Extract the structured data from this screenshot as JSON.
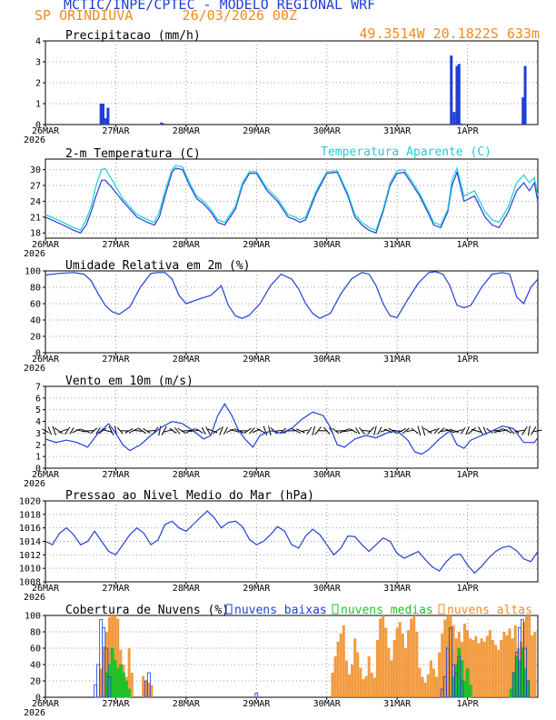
{
  "header": {
    "title": "MCTIC/INPE/CPTEC - MODELO REGIONAL WRF",
    "location": "SP ORINDIUVA      26/03/2026 00Z",
    "coords": "49.3514W 20.1822S 633m"
  },
  "colors": {
    "blue": "#1f3fd6",
    "orange": "#f08a1e",
    "green": "#22c02a",
    "cyan": "#1fcfd6",
    "black": "#000000"
  },
  "x_axis": {
    "labels": [
      "26MAR",
      "27MAR",
      "28MAR",
      "29MAR",
      "30MAR",
      "31MAR",
      "1APR"
    ],
    "year": "2026"
  },
  "chart_data": [
    {
      "id": "precip",
      "type": "bar",
      "title": "Precipitacao (mm/h)",
      "ylim": [
        0,
        4
      ],
      "yticks": [
        0,
        1,
        2,
        3,
        4
      ],
      "x_days": [
        0.79,
        0.82,
        0.86,
        0.89,
        1.65,
        1.68,
        5.77,
        5.81,
        5.85,
        5.88,
        5.91,
        6.79,
        6.82
      ],
      "values": [
        1.0,
        1.0,
        0.3,
        0.8,
        0.1,
        0.05,
        3.3,
        0.6,
        2.8,
        2.9,
        0.05,
        1.3,
        2.8
      ]
    },
    {
      "id": "temp",
      "type": "line",
      "title": "2-m Temperatura (C)",
      "title2": "Temperatura Aparente (C)",
      "ylim": [
        17,
        32
      ],
      "yticks": [
        18,
        21,
        24,
        27,
        30
      ],
      "series": [
        {
          "name": "2-m Temperatura (C)",
          "color": "blue",
          "x": [
            0,
            0.25,
            0.4,
            0.5,
            0.58,
            0.65,
            0.72,
            0.8,
            0.85,
            0.95,
            1.1,
            1.3,
            1.45,
            1.55,
            1.62,
            1.7,
            1.8,
            1.85,
            1.95,
            2.05,
            2.15,
            2.25,
            2.35,
            2.45,
            2.55,
            2.7,
            2.8,
            2.9,
            3.0,
            3.15,
            3.3,
            3.45,
            3.55,
            3.62,
            3.7,
            3.85,
            4.0,
            4.15,
            4.3,
            4.4,
            4.5,
            4.6,
            4.7,
            4.8,
            4.9,
            5.0,
            5.1,
            5.2,
            5.32,
            5.45,
            5.52,
            5.62,
            5.72,
            5.78,
            5.85,
            5.95,
            6.1,
            6.25,
            6.35,
            6.45,
            6.58,
            6.7,
            6.8,
            6.88,
            6.95,
            7.0
          ],
          "y": [
            21,
            19.5,
            18.5,
            18,
            19.5,
            22,
            25,
            28,
            28,
            26.5,
            24,
            21,
            20,
            19.5,
            21,
            25,
            29.5,
            30.3,
            30,
            27,
            24.5,
            23.5,
            22,
            20,
            19.5,
            22.5,
            27,
            29.3,
            29.3,
            26,
            24,
            21,
            20.5,
            20,
            20.5,
            25.5,
            29.3,
            29.5,
            25,
            21,
            19.5,
            18.5,
            18,
            22,
            27,
            29.3,
            29.5,
            27.5,
            25,
            21.5,
            19.5,
            19,
            22,
            27,
            29.5,
            24,
            25,
            21,
            19.5,
            19,
            22,
            26,
            27.5,
            26,
            27.5,
            24
          ]
        },
        {
          "name": "Temperatura Aparente (C)",
          "color": "cyan",
          "x": [
            0,
            0.25,
            0.4,
            0.5,
            0.58,
            0.65,
            0.72,
            0.8,
            0.85,
            0.95,
            1.1,
            1.3,
            1.45,
            1.55,
            1.62,
            1.7,
            1.8,
            1.85,
            1.95,
            2.05,
            2.15,
            2.25,
            2.35,
            2.45,
            2.55,
            2.7,
            2.8,
            2.9,
            3.0,
            3.15,
            3.3,
            3.45,
            3.55,
            3.62,
            3.7,
            3.85,
            4.0,
            4.15,
            4.3,
            4.4,
            4.5,
            4.6,
            4.7,
            4.8,
            4.9,
            5.0,
            5.1,
            5.2,
            5.32,
            5.45,
            5.52,
            5.62,
            5.72,
            5.78,
            5.85,
            5.95,
            6.1,
            6.25,
            6.35,
            6.45,
            6.58,
            6.7,
            6.8,
            6.88,
            6.95,
            7.0
          ],
          "y": [
            21.5,
            20,
            19,
            18.5,
            20.5,
            23,
            27,
            30,
            30.2,
            28,
            24.5,
            21.5,
            20.5,
            20,
            22,
            26,
            30,
            30.8,
            30.5,
            27.5,
            25,
            24,
            22.5,
            20.5,
            20,
            23,
            27.5,
            29.6,
            29.6,
            26.5,
            24.5,
            21.5,
            21,
            20.5,
            21,
            26,
            29.6,
            29.8,
            25.5,
            21.5,
            20,
            19,
            18.5,
            22.5,
            27.5,
            29.8,
            30,
            28,
            25.5,
            22,
            20,
            19.5,
            22.5,
            28,
            30.3,
            25,
            26,
            22,
            20.5,
            20,
            23,
            27.5,
            29,
            27.5,
            28.5,
            25
          ]
        }
      ]
    },
    {
      "id": "rh",
      "type": "line",
      "title": "Umidade Relativa em 2m (%)",
      "ylim": [
        0,
        100
      ],
      "yticks": [
        0,
        20,
        40,
        60,
        80,
        100
      ],
      "series": [
        {
          "name": "Umidade Relativa em 2m (%)",
          "color": "blue",
          "x": [
            0,
            0.2,
            0.4,
            0.55,
            0.65,
            0.75,
            0.85,
            0.95,
            1.05,
            1.2,
            1.35,
            1.5,
            1.6,
            1.7,
            1.8,
            1.9,
            2.0,
            2.2,
            2.35,
            2.5,
            2.6,
            2.7,
            2.8,
            2.9,
            3.05,
            3.2,
            3.35,
            3.5,
            3.6,
            3.7,
            3.8,
            3.9,
            4.05,
            4.2,
            4.35,
            4.5,
            4.6,
            4.7,
            4.8,
            4.9,
            5.0,
            5.15,
            5.3,
            5.45,
            5.55,
            5.65,
            5.75,
            5.85,
            5.95,
            6.05,
            6.2,
            6.35,
            6.5,
            6.6,
            6.7,
            6.8,
            6.9,
            7.0
          ],
          "y": [
            95,
            97,
            98,
            96,
            88,
            72,
            58,
            50,
            47,
            56,
            80,
            97,
            98,
            98,
            90,
            70,
            60,
            66,
            70,
            82,
            58,
            45,
            42,
            46,
            60,
            82,
            96,
            90,
            78,
            60,
            48,
            42,
            48,
            72,
            90,
            98,
            96,
            82,
            60,
            45,
            43,
            65,
            85,
            98,
            99,
            96,
            82,
            58,
            55,
            58,
            80,
            96,
            98,
            96,
            68,
            60,
            80,
            90
          ]
        }
      ]
    },
    {
      "id": "wind",
      "type": "line",
      "title": "Vento em 10m (m/s)",
      "ylim": [
        0,
        7
      ],
      "yticks": [
        0,
        1,
        2,
        3,
        4,
        5,
        6,
        7
      ],
      "series": [
        {
          "name": "Vento em 10m (m/s)",
          "color": "blue",
          "x": [
            0,
            0.15,
            0.3,
            0.45,
            0.6,
            0.75,
            0.9,
            1.0,
            1.1,
            1.2,
            1.35,
            1.5,
            1.65,
            1.8,
            1.95,
            2.1,
            2.25,
            2.35,
            2.45,
            2.55,
            2.65,
            2.75,
            2.85,
            2.95,
            3.05,
            3.2,
            3.35,
            3.5,
            3.65,
            3.8,
            3.95,
            4.05,
            4.15,
            4.25,
            4.4,
            4.55,
            4.7,
            4.85,
            5.0,
            5.15,
            5.25,
            5.35,
            5.45,
            5.6,
            5.75,
            5.85,
            5.95,
            6.05,
            6.2,
            6.35,
            6.5,
            6.65,
            6.8,
            6.95,
            7.0
          ],
          "y": [
            2.5,
            2.2,
            2.4,
            2.2,
            1.8,
            3.0,
            3.8,
            3.0,
            2.0,
            1.5,
            2.0,
            2.8,
            3.5,
            4.0,
            3.8,
            3.2,
            2.5,
            2.8,
            4.5,
            5.5,
            4.5,
            3.2,
            2.4,
            1.8,
            2.8,
            3.2,
            3.0,
            3.4,
            4.2,
            4.8,
            4.5,
            3.5,
            2.0,
            1.8,
            2.5,
            2.8,
            2.6,
            3.0,
            3.2,
            2.4,
            1.4,
            1.2,
            1.6,
            2.5,
            3.2,
            2.0,
            1.7,
            2.4,
            2.8,
            3.2,
            3.6,
            3.4,
            2.2,
            2.2,
            2.6
          ]
        }
      ],
      "arrows": {
        "count": 113,
        "baseline": 3.2,
        "color": "black"
      }
    },
    {
      "id": "pressure",
      "type": "line",
      "title": "Pressao ao Nivel Medio do Mar (hPa)",
      "ylim": [
        1008,
        1020
      ],
      "yticks": [
        1008,
        1010,
        1012,
        1014,
        1016,
        1018,
        1020
      ],
      "series": [
        {
          "name": "Pressao ao Nivel Medio do Mar (hPa)",
          "color": "blue",
          "x": [
            0,
            0.1,
            0.2,
            0.3,
            0.4,
            0.5,
            0.6,
            0.7,
            0.8,
            0.9,
            1.0,
            1.1,
            1.2,
            1.3,
            1.4,
            1.5,
            1.6,
            1.7,
            1.8,
            1.9,
            2.0,
            2.1,
            2.2,
            2.3,
            2.4,
            2.5,
            2.6,
            2.7,
            2.8,
            2.9,
            3.0,
            3.1,
            3.2,
            3.3,
            3.4,
            3.5,
            3.6,
            3.7,
            3.8,
            3.9,
            4.0,
            4.1,
            4.2,
            4.3,
            4.4,
            4.5,
            4.6,
            4.7,
            4.8,
            4.9,
            5.0,
            5.1,
            5.2,
            5.3,
            5.4,
            5.5,
            5.6,
            5.7,
            5.8,
            5.9,
            6.0,
            6.1,
            6.2,
            6.3,
            6.4,
            6.5,
            6.6,
            6.7,
            6.8,
            6.9,
            7.0
          ],
          "y": [
            1014,
            1013.5,
            1015.2,
            1016,
            1015,
            1013.5,
            1014,
            1015.5,
            1014,
            1012.5,
            1012,
            1013.5,
            1015,
            1016,
            1015.2,
            1013.5,
            1014.2,
            1016.5,
            1017,
            1016,
            1015.5,
            1016.5,
            1017.5,
            1018.5,
            1017.5,
            1016,
            1016.8,
            1017,
            1016.2,
            1014.3,
            1013.5,
            1014,
            1015,
            1016.2,
            1015.5,
            1013.5,
            1013,
            1014.8,
            1015.8,
            1015,
            1013.5,
            1012,
            1013,
            1014.8,
            1014.7,
            1013.5,
            1012.5,
            1013.5,
            1014.5,
            1014,
            1012.2,
            1011.5,
            1012,
            1012.5,
            1011.3,
            1010.2,
            1009.6,
            1011,
            1012,
            1012.1,
            1010.5,
            1009.3,
            1010.3,
            1011.5,
            1012.5,
            1013.1,
            1013.3,
            1012.6,
            1011.4,
            1011,
            1012.5
          ]
        }
      ]
    },
    {
      "id": "clouds",
      "type": "bar",
      "title": "Cobertura de Nuvens (%)",
      "ylim": [
        0,
        100
      ],
      "yticks": [
        0,
        20,
        40,
        60,
        80,
        100
      ],
      "legend": [
        {
          "label": "nuvens baixas",
          "color": "blue"
        },
        {
          "label": "nuvens medias",
          "color": "green"
        },
        {
          "label": "nuvens altas",
          "color": "orange"
        }
      ],
      "series": [
        {
          "name": "nuvens altas",
          "color": "orange",
          "x_days": [
            0.79,
            0.83,
            0.87,
            0.91,
            0.95,
            0.99,
            1.03,
            1.07,
            1.11,
            1.15,
            1.19,
            1.23,
            1.39,
            1.43,
            1.47,
            1.51,
            4.08,
            4.12,
            4.16,
            4.2,
            4.24,
            4.28,
            4.32,
            4.36,
            4.4,
            4.44,
            4.48,
            4.52,
            4.56,
            4.6,
            4.64,
            4.68,
            4.72,
            4.76,
            4.8,
            4.84,
            4.88,
            4.92,
            4.96,
            5.0,
            5.04,
            5.08,
            5.12,
            5.16,
            5.2,
            5.24,
            5.28,
            5.32,
            5.36,
            5.4,
            5.44,
            5.48,
            5.52,
            5.56,
            5.6,
            5.64,
            5.68,
            5.72,
            5.76,
            5.8,
            5.84,
            5.88,
            5.92,
            5.96,
            6.0,
            6.04,
            6.08,
            6.12,
            6.16,
            6.2,
            6.24,
            6.28,
            6.32,
            6.36,
            6.4,
            6.44,
            6.48,
            6.52,
            6.56,
            6.6,
            6.64,
            6.68,
            6.72,
            6.76,
            6.8,
            6.84,
            6.88,
            6.92,
            6.96
          ],
          "values": [
            35,
            62,
            80,
            98,
            100,
            100,
            96,
            58,
            40,
            25,
            60,
            30,
            26,
            20,
            18,
            15,
            30,
            50,
            68,
            78,
            88,
            45,
            28,
            40,
            72,
            55,
            36,
            22,
            26,
            50,
            30,
            24,
            70,
            96,
            100,
            85,
            60,
            45,
            70,
            85,
            92,
            78,
            60,
            82,
            96,
            100,
            80,
            36,
            25,
            18,
            28,
            45,
            35,
            25,
            55,
            78,
            95,
            100,
            100,
            88,
            72,
            80,
            68,
            90,
            82,
            72,
            70,
            75,
            66,
            72,
            68,
            75,
            82,
            70,
            64,
            58,
            70,
            80,
            76,
            84,
            72,
            88,
            60,
            68,
            92,
            100,
            100,
            76,
            80
          ]
        },
        {
          "name": "nuvens medias",
          "color": "green",
          "x_days": [
            0.87,
            0.91,
            0.95,
            0.99,
            1.03,
            1.07,
            1.11,
            1.15,
            1.19,
            5.8,
            5.84,
            5.88,
            5.92,
            5.96,
            6.0,
            6.04,
            6.62,
            6.66,
            6.7,
            6.74,
            6.78,
            6.82,
            6.86
          ],
          "values": [
            30,
            40,
            60,
            45,
            35,
            40,
            30,
            20,
            10,
            25,
            40,
            60,
            45,
            20,
            35,
            15,
            10,
            30,
            50,
            45,
            60,
            35,
            20
          ]
        },
        {
          "name": "nuvens baixas",
          "color": "blue",
          "x_days": [
            0.71,
            0.75,
            0.79,
            0.83,
            0.87,
            0.91,
            1.43,
            1.47,
            3.0,
            5.64,
            5.68,
            5.72,
            5.76,
            5.8,
            5.84,
            5.88,
            5.92,
            6.66,
            6.7,
            6.74,
            6.78,
            6.82,
            6.86
          ],
          "values": [
            15,
            40,
            95,
            85,
            60,
            25,
            20,
            30,
            5,
            10,
            25,
            60,
            85,
            40,
            30,
            50,
            20,
            30,
            55,
            85,
            95,
            60,
            20
          ]
        }
      ]
    }
  ]
}
